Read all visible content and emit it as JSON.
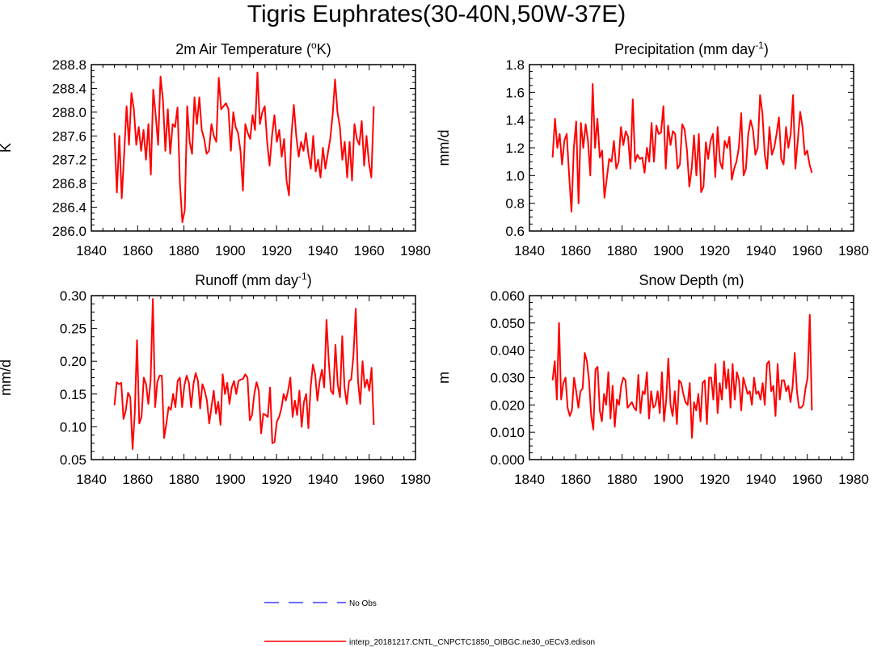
{
  "title": "Tigris Euphrates(30-40N,50W-37E)",
  "legend": [
    {
      "label": "No Obs",
      "color": "#3a3aff",
      "style": "dashed"
    },
    {
      "label": "interp_20181217.CNTL_CNPCTC1850_OIBGC.ne30_oECv3.edison",
      "color": "#ff0000",
      "style": "solid"
    }
  ],
  "chart_data": [
    {
      "type": "line",
      "title": "2m Air Temperature (",
      "title_sup": "o",
      "title_after": "K)",
      "ylabel": "K",
      "xlim": [
        1840,
        1980
      ],
      "xticks": [
        1840,
        1860,
        1880,
        1900,
        1920,
        1940,
        1960,
        1980
      ],
      "ylim": [
        286.0,
        288.8
      ],
      "yticks": [
        286.0,
        286.4,
        286.8,
        287.2,
        287.6,
        288.0,
        288.4,
        288.8
      ],
      "ydecimals": 1,
      "x_start": 1850,
      "series": [
        {
          "name": "interp_20181217.CNTL_CNPCTC1850_OIBGC.ne30_oECv3.edison",
          "color": "#ff0000",
          "values": [
            287.65,
            286.65,
            287.6,
            286.55,
            287.3,
            288.1,
            287.45,
            288.32,
            288.05,
            287.45,
            287.75,
            287.35,
            287.7,
            287.2,
            287.8,
            286.95,
            288.38,
            287.95,
            287.45,
            288.6,
            288.2,
            287.35,
            288.05,
            287.3,
            287.8,
            287.75,
            288.08,
            286.8,
            286.15,
            286.35,
            288.1,
            287.5,
            287.3,
            288.25,
            287.8,
            288.25,
            287.7,
            287.55,
            287.3,
            287.35,
            287.8,
            287.6,
            287.5,
            288.58,
            288.05,
            288.1,
            288.15,
            288.05,
            287.35,
            288.0,
            287.75,
            287.65,
            287.35,
            286.68,
            287.8,
            287.65,
            287.55,
            287.95,
            287.7,
            288.67,
            287.8,
            288.0,
            288.1,
            287.5,
            287.1,
            287.6,
            287.95,
            287.5,
            287.7,
            287.25,
            287.55,
            286.85,
            286.6,
            287.6,
            288.12,
            287.6,
            287.25,
            287.5,
            287.35,
            287.65,
            287.3,
            287.05,
            287.6,
            287.0,
            287.2,
            286.9,
            287.4,
            287.05,
            287.3,
            287.55,
            287.95,
            288.55,
            288.0,
            287.75,
            287.2,
            287.5,
            286.9,
            287.5,
            286.85,
            287.8,
            287.55,
            287.45,
            287.85,
            287.1,
            287.6,
            287.15,
            286.9,
            288.1
          ]
        }
      ]
    },
    {
      "type": "line",
      "title": "Precipitation (mm day",
      "title_sup": "-1",
      "title_after": ")",
      "ylabel": "mm/d",
      "xlim": [
        1840,
        1980
      ],
      "xticks": [
        1840,
        1860,
        1880,
        1900,
        1920,
        1940,
        1960,
        1980
      ],
      "ylim": [
        0.6,
        1.8
      ],
      "yticks": [
        0.6,
        0.8,
        1.0,
        1.2,
        1.4,
        1.6,
        1.8
      ],
      "ydecimals": 1,
      "x_start": 1850,
      "series": [
        {
          "name": "interp_20181217.CNTL_CNPCTC1850_OIBGC.ne30_oECv3.edison",
          "color": "#ff0000",
          "values": [
            1.13,
            1.41,
            1.2,
            1.3,
            1.08,
            1.25,
            1.3,
            1.0,
            0.74,
            1.2,
            1.39,
            0.8,
            1.38,
            1.2,
            1.37,
            1.25,
            1.0,
            1.66,
            1.2,
            1.41,
            1.13,
            1.18,
            0.84,
            0.98,
            1.12,
            1.1,
            1.25,
            1.05,
            1.1,
            1.35,
            1.22,
            1.32,
            1.28,
            1.05,
            1.55,
            1.1,
            1.15,
            1.12,
            1.13,
            1.02,
            1.2,
            1.1,
            1.38,
            1.1,
            1.36,
            1.3,
            1.31,
            1.5,
            1.05,
            1.36,
            1.22,
            1.32,
            1.3,
            1.05,
            1.08,
            1.37,
            1.33,
            1.18,
            0.92,
            1.05,
            1.29,
            1.0,
            1.3,
            0.88,
            0.92,
            1.24,
            1.12,
            1.25,
            1.3,
            0.99,
            1.35,
            1.1,
            1.05,
            1.25,
            1.2,
            1.28,
            0.97,
            1.05,
            1.1,
            1.2,
            1.45,
            1.0,
            1.05,
            1.3,
            1.4,
            1.33,
            1.15,
            1.2,
            1.58,
            1.45,
            1.15,
            1.05,
            1.35,
            1.15,
            1.2,
            1.3,
            1.42,
            1.12,
            1.08,
            1.35,
            1.2,
            1.3,
            1.58,
            1.05,
            1.25,
            1.46,
            1.35,
            1.15,
            1.18,
            1.08,
            1.02
          ]
        }
      ]
    },
    {
      "type": "line",
      "title": "Runoff (mm day",
      "title_sup": "-1",
      "title_after": ")",
      "ylabel": "mm/d",
      "xlim": [
        1840,
        1980
      ],
      "xticks": [
        1840,
        1860,
        1880,
        1900,
        1920,
        1940,
        1960,
        1980
      ],
      "ylim": [
        0.05,
        0.3
      ],
      "yticks": [
        0.05,
        0.1,
        0.15,
        0.2,
        0.25,
        0.3
      ],
      "ydecimals": 2,
      "x_start": 1850,
      "series": [
        {
          "name": "interp_20181217.CNTL_CNPCTC1850_OIBGC.ne30_oECv3.edison",
          "color": "#ff0000",
          "values": [
            0.133,
            0.168,
            0.165,
            0.167,
            0.112,
            0.125,
            0.152,
            0.145,
            0.066,
            0.12,
            0.232,
            0.105,
            0.115,
            0.175,
            0.165,
            0.135,
            0.17,
            0.295,
            0.13,
            0.168,
            0.178,
            0.178,
            0.083,
            0.105,
            0.13,
            0.126,
            0.15,
            0.13,
            0.17,
            0.175,
            0.13,
            0.163,
            0.178,
            0.167,
            0.13,
            0.165,
            0.182,
            0.17,
            0.128,
            0.165,
            0.155,
            0.14,
            0.105,
            0.13,
            0.155,
            0.12,
            0.138,
            0.103,
            0.18,
            0.15,
            0.167,
            0.135,
            0.16,
            0.17,
            0.15,
            0.17,
            0.172,
            0.173,
            0.18,
            0.175,
            0.11,
            0.118,
            0.15,
            0.168,
            0.155,
            0.09,
            0.12,
            0.118,
            0.115,
            0.16,
            0.075,
            0.077,
            0.108,
            0.115,
            0.128,
            0.15,
            0.14,
            0.155,
            0.175,
            0.115,
            0.14,
            0.118,
            0.155,
            0.1,
            0.138,
            0.15,
            0.098,
            0.16,
            0.195,
            0.18,
            0.14,
            0.17,
            0.187,
            0.16,
            0.263,
            0.2,
            0.155,
            0.15,
            0.225,
            0.165,
            0.145,
            0.238,
            0.16,
            0.135,
            0.17,
            0.172,
            0.21,
            0.28,
            0.17,
            0.135,
            0.2,
            0.16,
            0.172,
            0.155,
            0.19,
            0.103
          ]
        }
      ]
    },
    {
      "type": "line",
      "title": "Snow Depth (m)",
      "title_sup": "",
      "title_after": "",
      "ylabel": "m",
      "xlim": [
        1840,
        1980
      ],
      "xticks": [
        1840,
        1860,
        1880,
        1900,
        1920,
        1940,
        1960,
        1980
      ],
      "ylim": [
        0.0,
        0.06
      ],
      "yticks": [
        0.0,
        0.01,
        0.02,
        0.03,
        0.04,
        0.05,
        0.06
      ],
      "ydecimals": 3,
      "x_start": 1850,
      "series": [
        {
          "name": "interp_20181217.CNTL_CNPCTC1850_OIBGC.ne30_oECv3.edison",
          "color": "#ff0000",
          "values": [
            0.029,
            0.036,
            0.022,
            0.05,
            0.022,
            0.028,
            0.03,
            0.019,
            0.016,
            0.018,
            0.03,
            0.025,
            0.019,
            0.025,
            0.026,
            0.039,
            0.036,
            0.029,
            0.016,
            0.011,
            0.033,
            0.034,
            0.018,
            0.014,
            0.024,
            0.02,
            0.032,
            0.015,
            0.027,
            0.012,
            0.022,
            0.02,
            0.027,
            0.03,
            0.029,
            0.019,
            0.02,
            0.021,
            0.019,
            0.018,
            0.031,
            0.017,
            0.025,
            0.024,
            0.032,
            0.015,
            0.025,
            0.019,
            0.02,
            0.025,
            0.017,
            0.032,
            0.014,
            0.022,
            0.037,
            0.02,
            0.016,
            0.025,
            0.013,
            0.029,
            0.028,
            0.024,
            0.021,
            0.02,
            0.028,
            0.008,
            0.021,
            0.018,
            0.024,
            0.014,
            0.028,
            0.029,
            0.013,
            0.03,
            0.03,
            0.022,
            0.035,
            0.017,
            0.028,
            0.022,
            0.036,
            0.026,
            0.033,
            0.019,
            0.035,
            0.022,
            0.032,
            0.029,
            0.018,
            0.03,
            0.027,
            0.024,
            0.025,
            0.02,
            0.03,
            0.024,
            0.025,
            0.022,
            0.028,
            0.02,
            0.035,
            0.036,
            0.025,
            0.027,
            0.016,
            0.035,
            0.022,
            0.029,
            0.029,
            0.025,
            0.027,
            0.021,
            0.027,
            0.039,
            0.025,
            0.019,
            0.019,
            0.02,
            0.026,
            0.03,
            0.053,
            0.018
          ]
        }
      ]
    }
  ]
}
